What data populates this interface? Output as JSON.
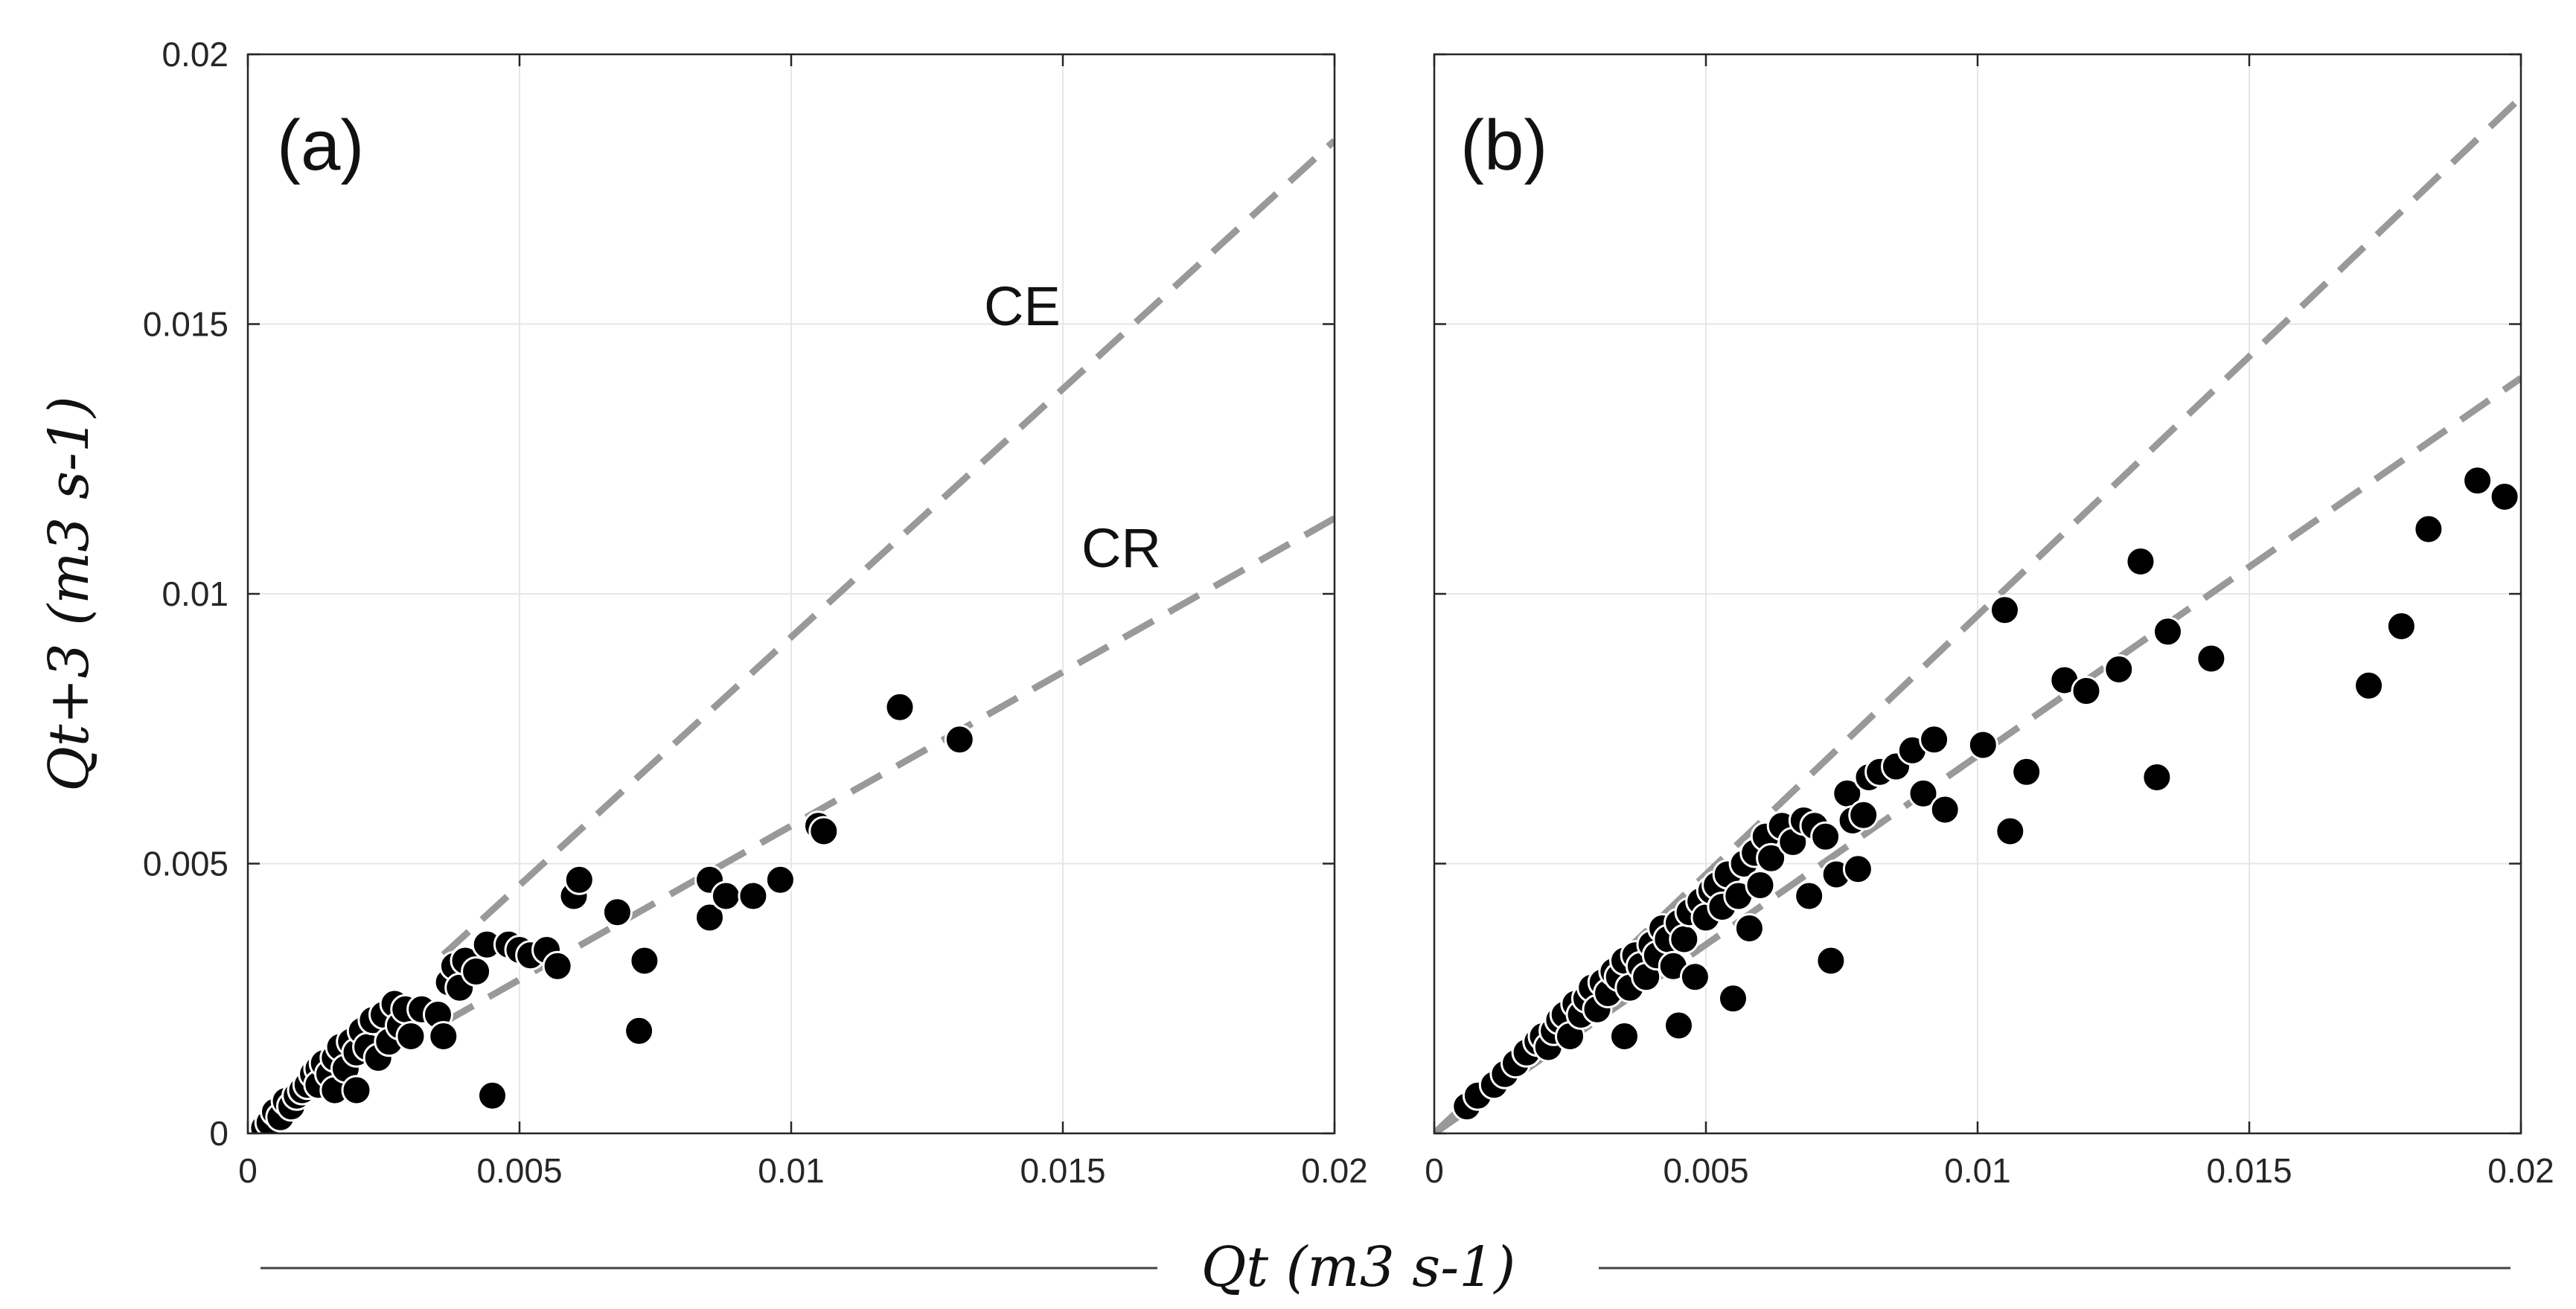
{
  "colors": {
    "points": "#000000",
    "reference_lines": "#999999",
    "grid": "#e6e6e6",
    "axes": "#262626"
  },
  "axis_titles": {
    "x": "Qt (m3 s-1)",
    "y": "Qt+3 (m3 s-1)"
  },
  "chart_data": [
    {
      "type": "scatter",
      "panel": "(a)",
      "title": "",
      "xlabel": "Qt (m3 s-1)",
      "ylabel": "Qt+3 (m3 s-1)",
      "xlim": [
        0,
        0.02
      ],
      "ylim": [
        0,
        0.02
      ],
      "xticks": [
        "0",
        "0.005",
        "0.01",
        "0.015",
        "0.02"
      ],
      "yticks": [
        "0",
        "0.005",
        "0.01",
        "0.015",
        "0.02"
      ],
      "grid": true,
      "reference_lines": [
        {
          "name": "CE",
          "x0": 0.0036,
          "slope": 0.92,
          "style": "dashed",
          "label_at": [
            0.0137,
            0.0152
          ]
        },
        {
          "name": "CR",
          "x0": 0.0036,
          "slope": 0.57,
          "style": "dashed",
          "label_at": [
            0.0163,
            0.0106
          ]
        }
      ],
      "series": [
        {
          "name": "observations",
          "points": [
            [
              0.0003,
              0.0001
            ],
            [
              0.0004,
              0.0002
            ],
            [
              0.0005,
              0.0004
            ],
            [
              0.0006,
              0.0003
            ],
            [
              0.0007,
              0.0006
            ],
            [
              0.0008,
              0.0005
            ],
            [
              0.0009,
              0.0007
            ],
            [
              0.001,
              0.0008
            ],
            [
              0.0011,
              0.0009
            ],
            [
              0.0012,
              0.0011
            ],
            [
              0.0013,
              0.0012
            ],
            [
              0.0013,
              0.0009
            ],
            [
              0.0014,
              0.0013
            ],
            [
              0.0015,
              0.0011
            ],
            [
              0.0016,
              0.0014
            ],
            [
              0.0016,
              0.0008
            ],
            [
              0.0017,
              0.0016
            ],
            [
              0.0018,
              0.0012
            ],
            [
              0.0019,
              0.0017
            ],
            [
              0.002,
              0.0008
            ],
            [
              0.002,
              0.0015
            ],
            [
              0.0021,
              0.0019
            ],
            [
              0.0022,
              0.0016
            ],
            [
              0.0023,
              0.0021
            ],
            [
              0.0024,
              0.0014
            ],
            [
              0.0025,
              0.0022
            ],
            [
              0.0026,
              0.0017
            ],
            [
              0.0027,
              0.0024
            ],
            [
              0.0028,
              0.002
            ],
            [
              0.0029,
              0.0023
            ],
            [
              0.003,
              0.0018
            ],
            [
              0.0032,
              0.0023
            ],
            [
              0.0035,
              0.0022
            ],
            [
              0.0036,
              0.0018
            ],
            [
              0.0037,
              0.0028
            ],
            [
              0.0038,
              0.0031
            ],
            [
              0.0039,
              0.0027
            ],
            [
              0.004,
              0.0032
            ],
            [
              0.0042,
              0.003
            ],
            [
              0.0044,
              0.0035
            ],
            [
              0.0045,
              0.0007
            ],
            [
              0.0048,
              0.0035
            ],
            [
              0.005,
              0.0034
            ],
            [
              0.0052,
              0.0033
            ],
            [
              0.0055,
              0.0034
            ],
            [
              0.0057,
              0.0031
            ],
            [
              0.006,
              0.0044
            ],
            [
              0.0061,
              0.0047
            ],
            [
              0.0068,
              0.0041
            ],
            [
              0.0072,
              0.0019
            ],
            [
              0.0073,
              0.0032
            ],
            [
              0.0085,
              0.004
            ],
            [
              0.0085,
              0.0047
            ],
            [
              0.0088,
              0.0044
            ],
            [
              0.0093,
              0.0044
            ],
            [
              0.0098,
              0.0047
            ],
            [
              0.0105,
              0.0057
            ],
            [
              0.0106,
              0.0056
            ],
            [
              0.012,
              0.0079
            ],
            [
              0.0131,
              0.0073
            ]
          ]
        }
      ]
    },
    {
      "type": "scatter",
      "panel": "(b)",
      "title": "",
      "xlabel": "Qt (m3 s-1)",
      "ylabel": "",
      "xlim": [
        0,
        0.02
      ],
      "ylim": [
        0,
        0.02
      ],
      "xticks": [
        "0",
        "0.005",
        "0.01",
        "0.015",
        "0.02"
      ],
      "yticks": [],
      "grid": true,
      "reference_lines": [
        {
          "name": "",
          "x0": 0.0,
          "slope": 0.96,
          "style": "dashed"
        },
        {
          "name": "",
          "x0": 0.0,
          "slope": 0.7,
          "style": "dashed"
        }
      ],
      "series": [
        {
          "name": "observations",
          "points": [
            [
              0.0006,
              0.0005
            ],
            [
              0.0008,
              0.0007
            ],
            [
              0.0011,
              0.0009
            ],
            [
              0.0013,
              0.0011
            ],
            [
              0.0015,
              0.0013
            ],
            [
              0.0017,
              0.0015
            ],
            [
              0.0019,
              0.0017
            ],
            [
              0.002,
              0.0018
            ],
            [
              0.0021,
              0.0016
            ],
            [
              0.0022,
              0.0019
            ],
            [
              0.0023,
              0.0021
            ],
            [
              0.0024,
              0.0022
            ],
            [
              0.0025,
              0.0018
            ],
            [
              0.0026,
              0.0024
            ],
            [
              0.0027,
              0.0022
            ],
            [
              0.0028,
              0.0025
            ],
            [
              0.0029,
              0.0027
            ],
            [
              0.003,
              0.0023
            ],
            [
              0.0031,
              0.0028
            ],
            [
              0.0032,
              0.0026
            ],
            [
              0.0033,
              0.003
            ],
            [
              0.0034,
              0.0029
            ],
            [
              0.0035,
              0.0018
            ],
            [
              0.0035,
              0.0032
            ],
            [
              0.0036,
              0.0027
            ],
            [
              0.0037,
              0.0033
            ],
            [
              0.0038,
              0.0031
            ],
            [
              0.0039,
              0.0029
            ],
            [
              0.004,
              0.0035
            ],
            [
              0.0041,
              0.0033
            ],
            [
              0.0042,
              0.0038
            ],
            [
              0.0043,
              0.0036
            ],
            [
              0.0044,
              0.0031
            ],
            [
              0.0045,
              0.0039
            ],
            [
              0.0045,
              0.002
            ],
            [
              0.0046,
              0.0036
            ],
            [
              0.0047,
              0.0041
            ],
            [
              0.0048,
              0.0029
            ],
            [
              0.0049,
              0.0043
            ],
            [
              0.005,
              0.004
            ],
            [
              0.0051,
              0.0045
            ],
            [
              0.0052,
              0.0046
            ],
            [
              0.0053,
              0.0042
            ],
            [
              0.0054,
              0.0048
            ],
            [
              0.0055,
              0.0025
            ],
            [
              0.0056,
              0.0044
            ],
            [
              0.0057,
              0.005
            ],
            [
              0.0058,
              0.0038
            ],
            [
              0.0059,
              0.0052
            ],
            [
              0.006,
              0.0046
            ],
            [
              0.0061,
              0.0055
            ],
            [
              0.0062,
              0.0051
            ],
            [
              0.0064,
              0.0057
            ],
            [
              0.0066,
              0.0054
            ],
            [
              0.0068,
              0.0058
            ],
            [
              0.0069,
              0.0044
            ],
            [
              0.007,
              0.0057
            ],
            [
              0.0072,
              0.0055
            ],
            [
              0.0073,
              0.0032
            ],
            [
              0.0074,
              0.0048
            ],
            [
              0.0076,
              0.0063
            ],
            [
              0.0077,
              0.0058
            ],
            [
              0.0078,
              0.0049
            ],
            [
              0.0079,
              0.0059
            ],
            [
              0.008,
              0.0066
            ],
            [
              0.0082,
              0.0067
            ],
            [
              0.0085,
              0.0068
            ],
            [
              0.0088,
              0.0071
            ],
            [
              0.009,
              0.0063
            ],
            [
              0.0092,
              0.0073
            ],
            [
              0.0094,
              0.006
            ],
            [
              0.0101,
              0.0072
            ],
            [
              0.0105,
              0.0097
            ],
            [
              0.0106,
              0.0056
            ],
            [
              0.0109,
              0.0067
            ],
            [
              0.0116,
              0.0084
            ],
            [
              0.012,
              0.0082
            ],
            [
              0.0126,
              0.0086
            ],
            [
              0.013,
              0.0106
            ],
            [
              0.0133,
              0.0066
            ],
            [
              0.0135,
              0.0093
            ],
            [
              0.0143,
              0.0088
            ],
            [
              0.0172,
              0.0083
            ],
            [
              0.0178,
              0.0094
            ],
            [
              0.0183,
              0.0112
            ],
            [
              0.0192,
              0.0121
            ],
            [
              0.0197,
              0.0118
            ]
          ]
        }
      ]
    }
  ]
}
